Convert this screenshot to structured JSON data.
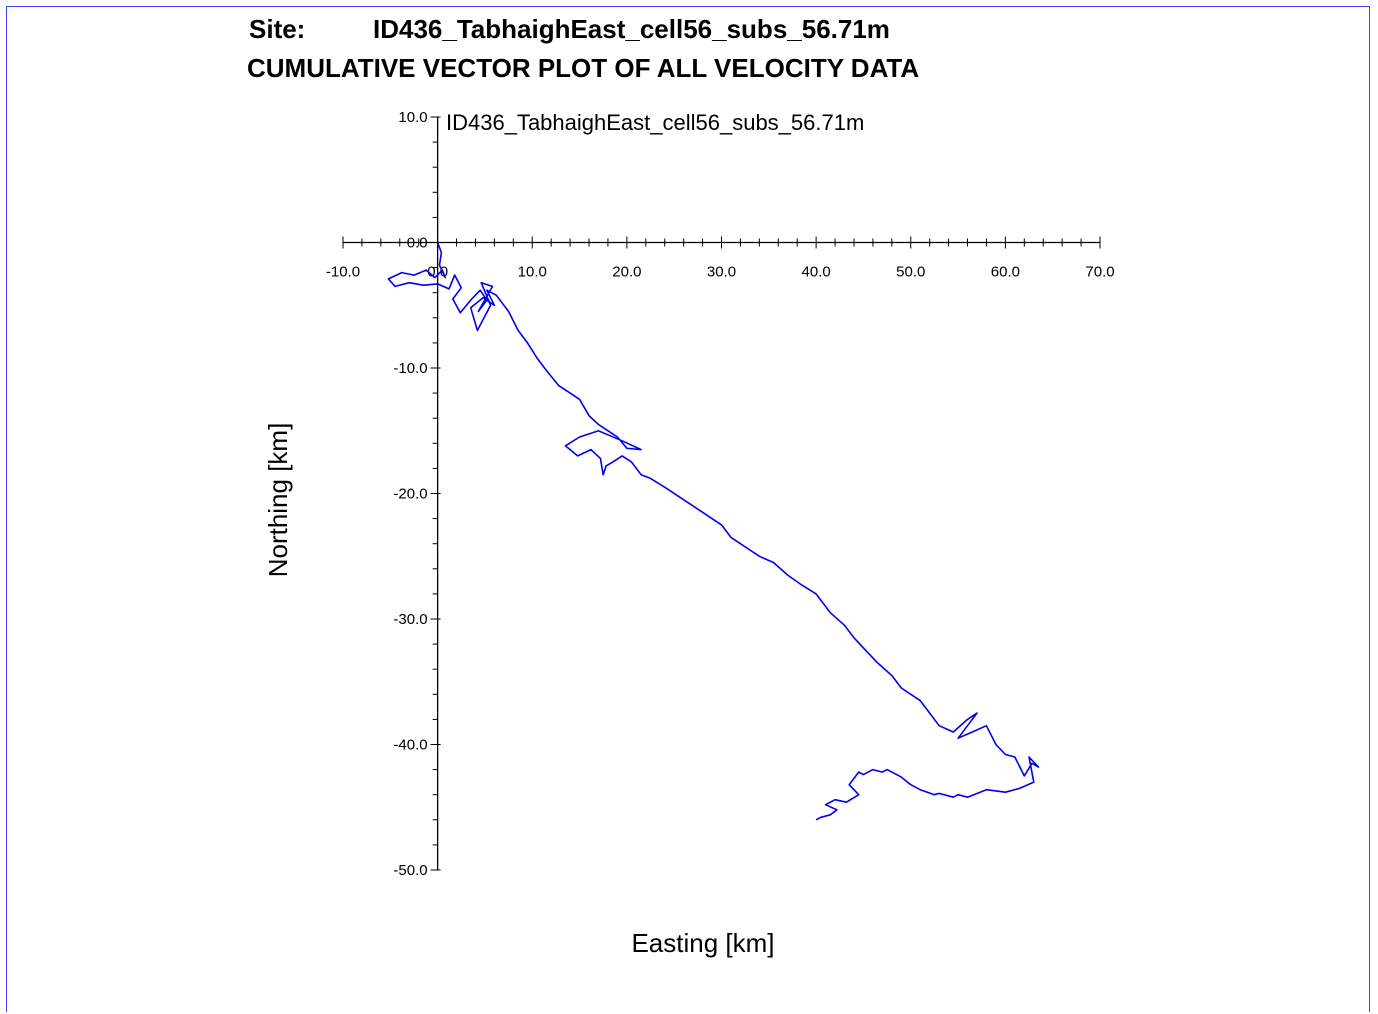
{
  "header": {
    "site_label": "Site:",
    "site_name": "ID436_TabhaighEast_cell56_subs_56.71m",
    "plot_title": "CUMULATIVE VECTOR PLOT OF ALL VELOCITY DATA"
  },
  "colors": {
    "series": "#0000ee",
    "frame": "#4040ff",
    "axis": "#000000"
  },
  "chart_data": {
    "type": "line",
    "title": "ID436_TabhaighEast_cell56_subs_56.71m",
    "xlabel": "Easting [km]",
    "ylabel": "Northing [km]",
    "xlim": [
      -10,
      70
    ],
    "ylim": [
      -50,
      10
    ],
    "x_ticks": [
      -10,
      0,
      10,
      20,
      30,
      40,
      50,
      60,
      70
    ],
    "x_tick_labels": [
      "-10.0",
      "0.0",
      "10.0",
      "20.0",
      "30.0",
      "40.0",
      "50.0",
      "60.0",
      "70.0"
    ],
    "y_ticks": [
      10,
      0,
      -10,
      -20,
      -30,
      -40,
      -50
    ],
    "y_tick_labels": [
      "10.0",
      "0.0",
      "-10.0",
      "-20.0",
      "-30.0",
      "-40.0",
      "-50.0"
    ],
    "axes_cross_at": [
      0,
      0
    ],
    "grid": false,
    "legend": "none",
    "series": [
      {
        "x": [
          0,
          0.4,
          0.2,
          0.8,
          0.5,
          -0.3,
          -1.2,
          -2.5,
          -3.8,
          -5.2,
          -4.5,
          -3.0,
          -1.5,
          0.0,
          1.2,
          1.8,
          2.5,
          1.6,
          2.4,
          3.6,
          4.5,
          5.2,
          4.3,
          5.8,
          4.6,
          5.6,
          4.2,
          3.5,
          4.8,
          6.0,
          5.2,
          6.2,
          7.5,
          8.5,
          9.5,
          10.5,
          11.5,
          12.8,
          14.0,
          15.0,
          16.0,
          17.0,
          18.0,
          19.0,
          20.0,
          21.5,
          19.5,
          17.0,
          15.0,
          13.5,
          14.8,
          16.2,
          17.2,
          17.5,
          17.8,
          18.5,
          19.5,
          20.5,
          21.5,
          22.5,
          24.0,
          26.0,
          28.0,
          30.0,
          31.0,
          32.0,
          33.0,
          34.0,
          35.5,
          37.0,
          38.5,
          40.0,
          41.5,
          43.0,
          44.0,
          45.0,
          46.5,
          48.0,
          49.0,
          50.0,
          51.0,
          52.0,
          53.0,
          54.5,
          56.0,
          57.0,
          56.0,
          55.0,
          56.5,
          58.0,
          59.0,
          60.0,
          61.0,
          62.0,
          62.8,
          63.5,
          62.5,
          63.0,
          61.5,
          60.0,
          58.0,
          56.0,
          55.0,
          54.5,
          53.0,
          52.5,
          51.0,
          50.0,
          49.0,
          48.5,
          47.5,
          47.0,
          46.0,
          45.0,
          44.5,
          43.5,
          44.5,
          43.2,
          42.0,
          41.0,
          42.2,
          41.5,
          40.5,
          40.0
        ],
        "y": [
          0,
          -0.8,
          -1.8,
          -2.8,
          -2.2,
          -2.8,
          -2.2,
          -2.6,
          -2.4,
          -2.9,
          -3.5,
          -3.2,
          -3.4,
          -3.3,
          -3.7,
          -2.6,
          -3.6,
          -4.5,
          -5.6,
          -4.5,
          -3.8,
          -4.6,
          -5.5,
          -3.5,
          -3.2,
          -5.0,
          -7.0,
          -5.2,
          -4.4,
          -5.0,
          -3.8,
          -4.2,
          -5.5,
          -7.0,
          -8.0,
          -9.2,
          -10.2,
          -11.4,
          -12.0,
          -12.5,
          -13.8,
          -14.5,
          -15.0,
          -15.5,
          -16.4,
          -16.5,
          -15.8,
          -15.0,
          -15.5,
          -16.2,
          -17.0,
          -16.5,
          -17.2,
          -18.5,
          -17.8,
          -17.5,
          -17.0,
          -17.5,
          -18.5,
          -18.8,
          -19.5,
          -20.5,
          -21.5,
          -22.5,
          -23.5,
          -24.0,
          -24.5,
          -25.0,
          -25.5,
          -26.5,
          -27.3,
          -28.0,
          -29.5,
          -30.5,
          -31.5,
          -32.3,
          -33.5,
          -34.5,
          -35.5,
          -36.0,
          -36.5,
          -37.5,
          -38.5,
          -39.0,
          -38.0,
          -37.5,
          -38.5,
          -39.5,
          -39.0,
          -38.5,
          -40.0,
          -40.8,
          -41.0,
          -42.5,
          -41.5,
          -41.8,
          -41.0,
          -43.0,
          -43.5,
          -43.8,
          -43.6,
          -44.2,
          -44.0,
          -44.2,
          -43.9,
          -44.0,
          -43.6,
          -43.2,
          -42.6,
          -42.4,
          -42.0,
          -42.2,
          -42.0,
          -42.4,
          -42.2,
          -43.2,
          -44.0,
          -44.6,
          -44.4,
          -44.8,
          -45.2,
          -45.6,
          -45.8,
          -46.0
        ]
      }
    ]
  }
}
